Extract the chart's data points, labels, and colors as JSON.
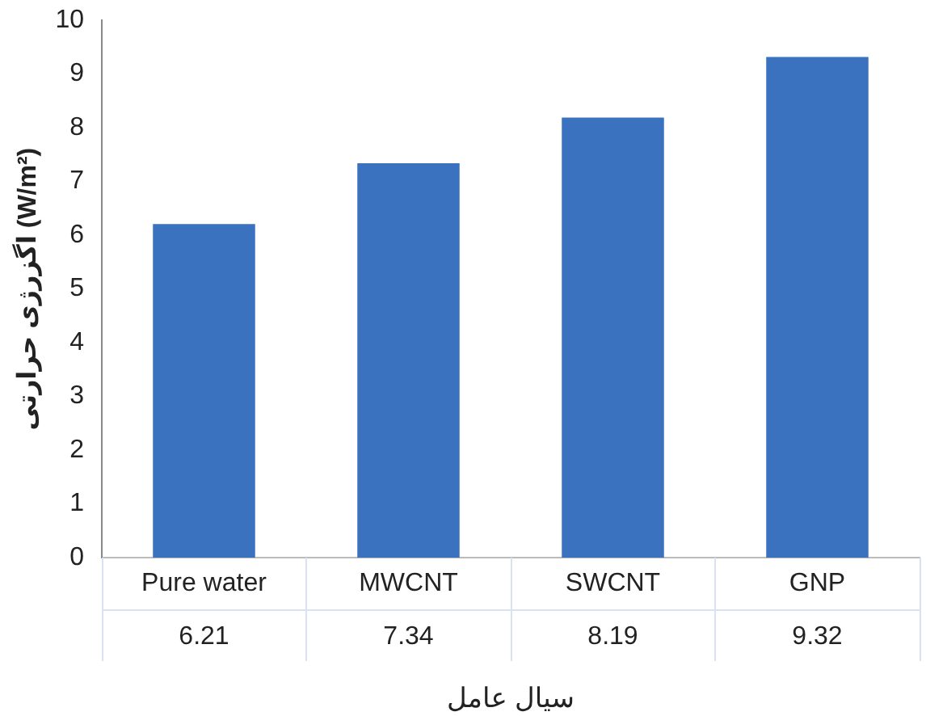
{
  "chart_data": {
    "type": "bar",
    "xlabel": "سیال عامل",
    "ylabel": "اگزرژی حرارتی (W/m²)",
    "categories": [
      "Pure water",
      "MWCNT",
      "SWCNT",
      "GNP"
    ],
    "values": [
      6.21,
      7.34,
      8.19,
      9.32
    ],
    "color": "#3a72bf",
    "ylim": [
      0,
      10
    ],
    "yticks": [
      0,
      1,
      2,
      3,
      4,
      5,
      6,
      7,
      8,
      9,
      10
    ],
    "grid": false,
    "legend": false,
    "data_labels": true
  }
}
